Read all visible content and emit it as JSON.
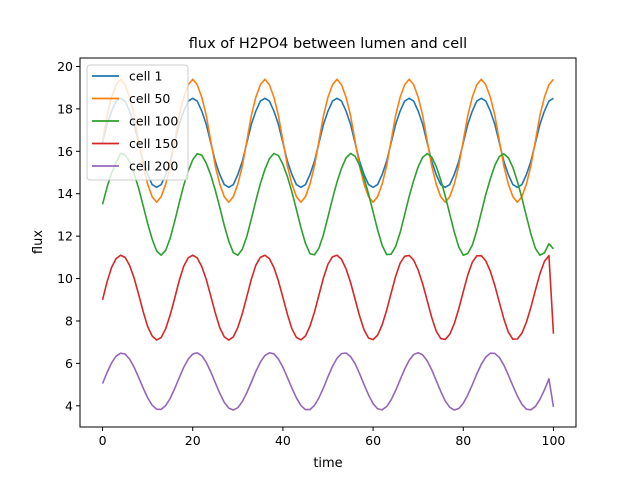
{
  "chart_data": {
    "type": "line",
    "title": "flux of H2PO4 between lumen and cell",
    "xlabel": "time",
    "ylabel": "flux",
    "xlim": [
      -5,
      105
    ],
    "ylim": [
      3.0,
      20.4
    ],
    "xticks": [
      0,
      20,
      40,
      60,
      80,
      100
    ],
    "yticks": [
      4,
      6,
      8,
      10,
      12,
      14,
      16,
      18,
      20
    ],
    "grid": false,
    "legend_position": "top-left",
    "x": [
      0,
      1,
      2,
      3,
      4,
      5,
      6,
      7,
      8,
      9,
      10,
      11,
      12,
      13,
      14,
      15,
      16,
      17,
      18,
      19,
      20,
      21,
      22,
      23,
      24,
      25,
      26,
      27,
      28,
      29,
      30,
      31,
      32,
      33,
      34,
      35,
      36,
      37,
      38,
      39,
      40,
      41,
      42,
      43,
      44,
      45,
      46,
      47,
      48,
      49,
      50,
      51,
      52,
      53,
      54,
      55,
      56,
      57,
      58,
      59,
      60,
      61,
      62,
      63,
      64,
      65,
      66,
      67,
      68,
      69,
      70,
      71,
      72,
      73,
      74,
      75,
      76,
      77,
      78,
      79,
      80,
      81,
      82,
      83,
      84,
      85,
      86,
      87,
      88,
      89,
      90,
      91,
      92,
      93,
      94,
      95,
      96,
      97,
      98,
      99,
      100
    ],
    "series": [
      {
        "name": "cell 1",
        "color": "#1f77b4",
        "values": [
          16.4,
          17.27,
          17.9,
          18.37,
          18.5,
          18.37,
          17.9,
          17.27,
          16.4,
          15.53,
          14.9,
          14.43,
          14.3,
          14.43,
          14.9,
          15.53,
          16.4,
          17.27,
          17.9,
          18.37,
          18.5,
          18.37,
          17.9,
          17.27,
          16.4,
          15.53,
          14.9,
          14.43,
          14.3,
          14.43,
          14.9,
          15.53,
          16.4,
          17.27,
          17.9,
          18.37,
          18.5,
          18.37,
          17.9,
          17.27,
          16.4,
          15.53,
          14.9,
          14.43,
          14.3,
          14.43,
          14.9,
          15.53,
          16.4,
          17.27,
          17.9,
          18.37,
          18.5,
          18.37,
          17.9,
          17.27,
          16.4,
          15.53,
          14.9,
          14.43,
          14.3,
          14.43,
          14.9,
          15.53,
          16.4,
          17.27,
          17.9,
          18.37,
          18.5,
          18.37,
          17.9,
          17.27,
          16.4,
          15.53,
          14.9,
          14.43,
          14.3,
          14.43,
          14.9,
          15.53,
          16.4,
          17.27,
          17.9,
          18.37,
          18.5,
          18.37,
          17.9,
          17.27,
          16.4,
          15.53,
          14.9,
          14.43,
          14.3,
          14.43,
          14.9,
          15.53,
          16.4,
          17.27,
          17.9,
          18.37,
          18.5
        ]
      },
      {
        "name": "cell 50",
        "color": "#ff7f0e",
        "values": [
          16.5,
          17.69,
          18.55,
          19.14,
          19.4,
          19.14,
          18.55,
          17.69,
          16.5,
          15.31,
          14.45,
          13.86,
          13.6,
          13.86,
          14.45,
          15.31,
          16.5,
          17.69,
          18.55,
          19.14,
          19.4,
          19.14,
          18.55,
          17.69,
          16.5,
          15.31,
          14.45,
          13.86,
          13.6,
          13.86,
          14.45,
          15.31,
          16.5,
          17.69,
          18.55,
          19.14,
          19.4,
          19.14,
          18.55,
          17.69,
          16.5,
          15.31,
          14.45,
          13.86,
          13.6,
          13.86,
          14.45,
          15.31,
          16.5,
          17.69,
          18.55,
          19.14,
          19.4,
          19.14,
          18.55,
          17.69,
          16.5,
          15.31,
          14.45,
          13.86,
          13.6,
          13.86,
          14.45,
          15.31,
          16.5,
          17.69,
          18.55,
          19.14,
          19.4,
          19.14,
          18.55,
          17.69,
          16.5,
          15.31,
          14.45,
          13.86,
          13.6,
          13.86,
          14.45,
          15.31,
          16.5,
          17.69,
          18.55,
          19.14,
          19.4,
          19.14,
          18.55,
          17.69,
          16.5,
          15.31,
          14.45,
          13.86,
          13.6,
          13.86,
          14.45,
          15.31,
          16.5,
          17.69,
          18.55,
          19.14,
          19.4
        ]
      },
      {
        "name": "cell 100",
        "color": "#2ca02c",
        "values": [
          13.5,
          14.31,
          14.97,
          15.47,
          15.9,
          15.84,
          15.49,
          14.95,
          14.26,
          13.44,
          12.6,
          11.86,
          11.3,
          11.1,
          11.33,
          11.9,
          12.7,
          13.57,
          14.39,
          15.07,
          15.6,
          15.89,
          15.82,
          15.44,
          14.88,
          14.17,
          13.36,
          12.5,
          11.76,
          11.22,
          11.1,
          11.38,
          11.99,
          12.81,
          13.67,
          14.47,
          15.14,
          15.65,
          15.9,
          15.8,
          15.39,
          14.81,
          14.08,
          13.25,
          12.4,
          11.66,
          11.17,
          11.12,
          11.44,
          12.08,
          12.91,
          13.77,
          14.55,
          15.2,
          15.69,
          15.9,
          15.77,
          15.34,
          14.73,
          13.98,
          13.14,
          12.3,
          11.57,
          11.13,
          11.15,
          11.51,
          12.17,
          13.01,
          13.87,
          14.62,
          15.27,
          15.72,
          15.89,
          15.73,
          15.29,
          14.66,
          13.89,
          13.04,
          12.2,
          11.49,
          11.1,
          11.18,
          11.57,
          12.26,
          13.12,
          13.97,
          14.7,
          15.33,
          15.76,
          15.88,
          15.69,
          15.24,
          14.58,
          13.8,
          12.94,
          12.1,
          11.42,
          11.1,
          11.21,
          11.64,
          11.4
        ]
      },
      {
        "name": "cell 150",
        "color": "#d62728",
        "values": [
          9.0,
          9.84,
          10.52,
          10.94,
          11.1,
          11.0,
          10.62,
          10.02,
          9.26,
          8.45,
          7.74,
          7.29,
          7.1,
          7.22,
          7.63,
          8.28,
          9.07,
          9.9,
          10.58,
          10.98,
          11.1,
          10.97,
          10.57,
          9.96,
          9.18,
          8.38,
          7.68,
          7.25,
          7.1,
          7.25,
          7.69,
          8.35,
          9.15,
          9.97,
          10.63,
          11.0,
          11.1,
          10.94,
          10.52,
          9.89,
          9.11,
          8.31,
          7.63,
          7.22,
          7.11,
          7.29,
          7.75,
          8.42,
          9.23,
          10.04,
          10.68,
          11.03,
          11.1,
          10.91,
          10.46,
          9.82,
          9.03,
          8.24,
          7.58,
          7.19,
          7.12,
          7.33,
          7.81,
          8.5,
          9.31,
          10.1,
          10.73,
          11.05,
          11.09,
          10.87,
          10.4,
          9.75,
          8.96,
          8.17,
          7.52,
          7.17,
          7.13,
          7.37,
          7.87,
          8.57,
          9.38,
          10.17,
          10.77,
          11.07,
          11.08,
          10.83,
          10.35,
          9.67,
          8.88,
          8.1,
          7.47,
          7.14,
          7.15,
          7.42,
          7.94,
          8.65,
          9.45,
          10.23,
          10.81,
          11.08,
          7.4
        ]
      },
      {
        "name": "cell 200",
        "color": "#9467bd",
        "values": [
          5.05,
          5.57,
          6.02,
          6.34,
          6.48,
          6.44,
          6.2,
          5.82,
          5.34,
          4.84,
          4.38,
          4.03,
          3.84,
          3.83,
          4.01,
          4.35,
          4.81,
          5.32,
          5.81,
          6.2,
          6.44,
          6.5,
          6.36,
          6.05,
          5.6,
          5.09,
          4.59,
          4.16,
          3.89,
          3.8,
          3.91,
          4.2,
          4.62,
          5.11,
          5.62,
          6.06,
          6.37,
          6.5,
          6.45,
          6.21,
          5.82,
          5.33,
          4.83,
          4.37,
          4.01,
          3.82,
          3.82,
          4.02,
          4.38,
          4.85,
          5.37,
          5.86,
          6.24,
          6.46,
          6.49,
          6.32,
          5.99,
          5.52,
          5.0,
          4.51,
          4.1,
          3.86,
          3.81,
          3.96,
          4.28,
          4.72,
          5.23,
          5.73,
          6.14,
          6.42,
          6.5,
          6.4,
          6.12,
          5.7,
          5.19,
          4.68,
          4.23,
          3.93,
          3.8,
          3.87,
          4.12,
          4.51,
          4.99,
          5.5,
          5.96,
          6.3,
          6.48,
          6.47,
          6.28,
          5.92,
          5.45,
          4.94,
          4.46,
          4.07,
          3.84,
          3.81,
          3.97,
          4.3,
          4.75,
          5.27,
          3.95
        ]
      }
    ]
  }
}
